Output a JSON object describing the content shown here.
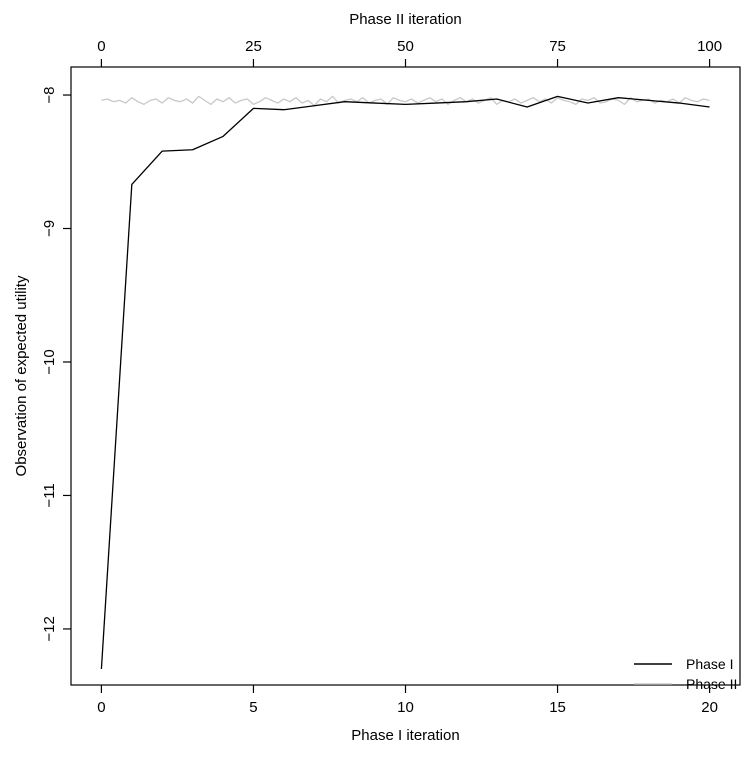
{
  "chart_data": {
    "type": "line",
    "title": "",
    "xlabel": "Phase I iteration",
    "ylabel": "Observation of expected utility",
    "x2label": "Phase II iteration",
    "xlim": [
      -1,
      21
    ],
    "x2lim": [
      -5,
      105
    ],
    "ylim": [
      -12.42,
      -7.79
    ],
    "x_ticks": [
      0,
      5,
      10,
      15,
      20
    ],
    "x2_ticks": [
      0,
      25,
      50,
      75,
      100
    ],
    "y_ticks": [
      -8,
      -9,
      -10,
      -11,
      -12
    ],
    "legend_position": "bottom-right",
    "grid": false,
    "series": [
      {
        "name": "Phase I",
        "axis": "bottom",
        "color": "#000000",
        "x": [
          0,
          1,
          2,
          3,
          4,
          5,
          6,
          7,
          8,
          9,
          10,
          11,
          12,
          13,
          14,
          15,
          16,
          17,
          18,
          19,
          20
        ],
        "values": [
          -12.3,
          -8.67,
          -8.42,
          -8.41,
          -8.31,
          -8.1,
          -8.11,
          -8.08,
          -8.05,
          -8.06,
          -8.07,
          -8.06,
          -8.05,
          -8.03,
          -8.09,
          -8.01,
          -8.06,
          -8.02,
          -8.04,
          -8.06,
          -8.09
        ]
      },
      {
        "name": "Phase II",
        "axis": "top",
        "color": "#c8c8c8",
        "x": [
          0,
          1,
          2,
          3,
          4,
          5,
          6,
          7,
          8,
          9,
          10,
          11,
          12,
          13,
          14,
          15,
          16,
          17,
          18,
          19,
          20,
          21,
          22,
          23,
          24,
          25,
          26,
          27,
          28,
          29,
          30,
          31,
          32,
          33,
          34,
          35,
          36,
          37,
          38,
          39,
          40,
          41,
          42,
          43,
          44,
          45,
          46,
          47,
          48,
          49,
          50,
          51,
          52,
          53,
          54,
          55,
          56,
          57,
          58,
          59,
          60,
          61,
          62,
          63,
          64,
          65,
          66,
          67,
          68,
          69,
          70,
          71,
          72,
          73,
          74,
          75,
          76,
          77,
          78,
          79,
          80,
          81,
          82,
          83,
          84,
          85,
          86,
          87,
          88,
          89,
          90,
          91,
          92,
          93,
          94,
          95,
          96,
          97,
          98,
          99,
          100
        ],
        "values": [
          -8.04,
          -8.03,
          -8.05,
          -8.04,
          -8.06,
          -8.02,
          -8.05,
          -8.07,
          -8.04,
          -8.03,
          -8.06,
          -8.02,
          -8.04,
          -8.05,
          -8.03,
          -8.06,
          -8.01,
          -8.04,
          -8.07,
          -8.03,
          -8.05,
          -8.02,
          -8.06,
          -8.04,
          -8.03,
          -8.07,
          -8.05,
          -8.02,
          -8.04,
          -8.06,
          -8.03,
          -8.05,
          -8.02,
          -8.06,
          -8.04,
          -8.08,
          -8.03,
          -8.05,
          -8.01,
          -8.06,
          -8.04,
          -8.03,
          -8.05,
          -8.02,
          -8.06,
          -8.04,
          -8.03,
          -8.07,
          -8.02,
          -8.04,
          -8.05,
          -8.03,
          -8.06,
          -8.04,
          -8.02,
          -8.05,
          -8.03,
          -8.07,
          -8.04,
          -8.02,
          -8.05,
          -8.03,
          -8.06,
          -8.04,
          -8.02,
          -8.07,
          -8.04,
          -8.05,
          -8.03,
          -8.06,
          -8.04,
          -8.02,
          -8.05,
          -8.03,
          -8.06,
          -8.02,
          -8.04,
          -8.05,
          -8.07,
          -8.03,
          -8.04,
          -8.02,
          -8.06,
          -8.05,
          -8.03,
          -8.04,
          -8.07,
          -8.02,
          -8.05,
          -8.04,
          -8.03,
          -8.06,
          -8.04,
          -8.05,
          -8.03,
          -8.06,
          -8.02,
          -8.04,
          -8.05,
          -8.03,
          -8.04
        ]
      }
    ]
  }
}
